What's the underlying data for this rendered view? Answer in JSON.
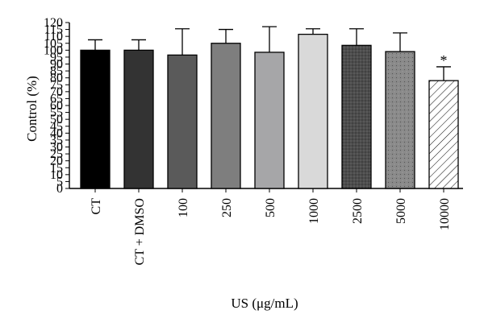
{
  "chart_data": {
    "type": "bar",
    "ylabel": "Control (%)",
    "xlabel": "US (μg/mL)",
    "ylim": [
      0,
      120
    ],
    "yticks": [
      0,
      5,
      10,
      15,
      20,
      25,
      30,
      35,
      40,
      45,
      50,
      55,
      60,
      65,
      70,
      75,
      80,
      85,
      90,
      95,
      100,
      105,
      110,
      115,
      120
    ],
    "grid": false,
    "categories": [
      "CT",
      "CT + DMSO",
      "100",
      "250",
      "500",
      "1000",
      "2500",
      "5000",
      "10000"
    ],
    "values": [
      100,
      100,
      96.5,
      105,
      98.5,
      111.5,
      103.5,
      99,
      78
    ],
    "error_upper": [
      107.5,
      107.5,
      115.5,
      115,
      117,
      115.5,
      115.5,
      112.5,
      88
    ],
    "bar_styles": [
      {
        "fill": "#000000",
        "pattern": "solid"
      },
      {
        "fill": "#333333",
        "pattern": "solid"
      },
      {
        "fill": "#5a5a5a",
        "pattern": "solid"
      },
      {
        "fill": "#7e7e7e",
        "pattern": "solid"
      },
      {
        "fill": "#a6a6a8",
        "pattern": "solid"
      },
      {
        "fill": "#d9d9d9",
        "pattern": "solid"
      },
      {
        "fill": "#4d4d4d",
        "pattern": "dots-dense"
      },
      {
        "fill": "#8a8a8a",
        "pattern": "dots"
      },
      {
        "fill": "#ffffff",
        "pattern": "diagonal-hatch"
      }
    ],
    "annotations": [
      {
        "category": "10000",
        "text": "*"
      }
    ]
  }
}
